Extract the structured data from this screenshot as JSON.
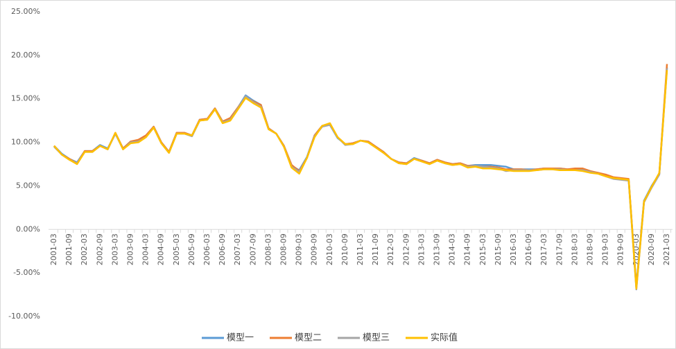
{
  "chart_data": {
    "type": "line",
    "categories": [
      "2001-03",
      null,
      "2001-09",
      null,
      "2002-03",
      null,
      "2002-09",
      null,
      "2003-03",
      null,
      "2003-09",
      null,
      "2004-03",
      null,
      "2004-09",
      null,
      "2005-03",
      null,
      "2005-09",
      null,
      "2006-03",
      null,
      "2006-09",
      null,
      "2007-03",
      null,
      "2007-09",
      null,
      "2008-03",
      null,
      "2008-09",
      null,
      "2009-03",
      null,
      "2009-09",
      null,
      "2010-03",
      null,
      "2010-09",
      null,
      "2011-03",
      null,
      "2011-09",
      null,
      "2012-03",
      null,
      "2012-09",
      null,
      "2013-03",
      null,
      "2013-09",
      null,
      "2014-03",
      null,
      "2014-09",
      null,
      "2015-03",
      null,
      "2015-09",
      null,
      "2016-03",
      null,
      "2016-09",
      null,
      "2017-03",
      null,
      "2017-09",
      null,
      "2018-03",
      null,
      "2018-09",
      null,
      "2019-03",
      null,
      "2019-09",
      null,
      "2020-03",
      null,
      "2020-09",
      null,
      "2021-03"
    ],
    "series": [
      {
        "name": "模型一",
        "color": "#5b9bd5",
        "values": [
          9.6,
          8.7,
          8.1,
          7.7,
          9.0,
          9.0,
          9.7,
          9.3,
          11.0,
          9.3,
          10.1,
          10.2,
          10.7,
          11.8,
          10.0,
          8.9,
          11.1,
          11.1,
          10.8,
          12.6,
          12.7,
          13.9,
          12.3,
          12.8,
          14.0,
          15.4,
          14.8,
          14.3,
          11.6,
          11.0,
          9.6,
          7.3,
          6.8,
          8.3,
          10.8,
          11.9,
          12.0,
          10.5,
          9.8,
          9.9,
          10.2,
          10.1,
          9.5,
          8.9,
          8.1,
          7.7,
          7.6,
          8.2,
          7.9,
          7.6,
          8.0,
          7.7,
          7.5,
          7.6,
          7.3,
          7.4,
          7.4,
          7.4,
          7.3,
          7.2,
          6.9,
          6.9,
          6.9,
          6.9,
          7.0,
          7.0,
          7.0,
          6.9,
          6.9,
          6.9,
          6.6,
          6.5,
          6.2,
          5.9,
          5.8,
          5.7,
          -6.5,
          3.3,
          5.0,
          6.4,
          18.6
        ]
      },
      {
        "name": "模型二",
        "color": "#ed7d31",
        "values": [
          9.6,
          8.6,
          8.1,
          7.6,
          9.0,
          9.0,
          9.6,
          9.2,
          11.1,
          9.3,
          10.1,
          10.3,
          10.8,
          11.8,
          10.0,
          8.9,
          11.1,
          11.1,
          10.8,
          12.6,
          12.7,
          13.9,
          12.4,
          12.8,
          14.0,
          15.2,
          14.7,
          14.3,
          11.6,
          11.0,
          9.6,
          7.4,
          6.7,
          8.2,
          10.8,
          11.9,
          12.1,
          10.6,
          9.8,
          9.9,
          10.2,
          10.1,
          9.5,
          8.9,
          8.1,
          7.7,
          7.6,
          8.1,
          7.9,
          7.6,
          8.0,
          7.7,
          7.5,
          7.6,
          7.3,
          7.3,
          7.2,
          7.2,
          7.1,
          6.9,
          6.9,
          6.9,
          6.8,
          6.9,
          7.0,
          7.0,
          7.0,
          6.9,
          7.0,
          7.0,
          6.7,
          6.5,
          6.3,
          6.0,
          5.9,
          5.8,
          -6.7,
          3.2,
          4.9,
          6.4,
          19.0
        ]
      },
      {
        "name": "模型三",
        "color": "#a5a5a5",
        "values": [
          9.5,
          8.6,
          8.0,
          7.6,
          8.9,
          8.9,
          9.6,
          9.2,
          11.0,
          9.2,
          10.0,
          10.1,
          10.6,
          11.7,
          9.9,
          8.8,
          11.0,
          11.0,
          10.7,
          12.5,
          12.6,
          13.8,
          12.3,
          12.6,
          13.9,
          15.3,
          14.6,
          14.1,
          11.5,
          11.0,
          9.5,
          7.2,
          6.6,
          8.2,
          10.7,
          11.8,
          12.0,
          10.6,
          9.7,
          9.8,
          10.2,
          10.0,
          9.4,
          8.8,
          8.1,
          7.6,
          7.5,
          8.1,
          7.8,
          7.5,
          7.9,
          7.6,
          7.4,
          7.5,
          7.2,
          7.3,
          7.2,
          7.1,
          7.0,
          6.7,
          6.8,
          6.8,
          6.8,
          6.8,
          6.9,
          6.9,
          6.9,
          6.8,
          6.8,
          6.8,
          6.6,
          6.4,
          6.1,
          5.8,
          5.7,
          5.6,
          -6.9,
          3.1,
          4.8,
          6.3,
          18.5
        ]
      },
      {
        "name": "实际值",
        "color": "#ffc000",
        "values": [
          9.6,
          8.6,
          8.0,
          7.5,
          8.9,
          8.9,
          9.6,
          9.2,
          11.1,
          9.2,
          9.9,
          10.0,
          10.6,
          11.7,
          9.9,
          8.8,
          11.0,
          11.0,
          10.8,
          12.5,
          12.6,
          13.8,
          12.2,
          12.5,
          13.8,
          15.1,
          14.5,
          14.0,
          11.5,
          11.0,
          9.5,
          7.1,
          6.4,
          8.2,
          10.6,
          11.9,
          12.2,
          10.6,
          9.8,
          9.8,
          10.2,
          10.0,
          9.4,
          8.8,
          8.1,
          7.6,
          7.5,
          8.1,
          7.8,
          7.5,
          7.9,
          7.6,
          7.4,
          7.5,
          7.1,
          7.2,
          7.0,
          7.0,
          6.9,
          6.8,
          6.7,
          6.7,
          6.7,
          6.8,
          6.9,
          6.9,
          6.8,
          6.8,
          6.8,
          6.7,
          6.5,
          6.4,
          6.1,
          5.9,
          5.8,
          5.7,
          -6.8,
          3.2,
          4.9,
          6.5,
          18.3
        ]
      }
    ],
    "ylim": [
      -10,
      25
    ],
    "yticks": [
      {
        "value": -10,
        "label": "-10.00%"
      },
      {
        "value": -5,
        "label": "-5.00%"
      },
      {
        "value": 0,
        "label": "0.00%"
      },
      {
        "value": 5,
        "label": "5.00%"
      },
      {
        "value": 10,
        "label": "10.00%"
      },
      {
        "value": 15,
        "label": "15.00%"
      },
      {
        "value": 20,
        "label": "20.00%"
      },
      {
        "value": 25,
        "label": "25.00%"
      }
    ],
    "grid": false,
    "legend": "bottom"
  }
}
